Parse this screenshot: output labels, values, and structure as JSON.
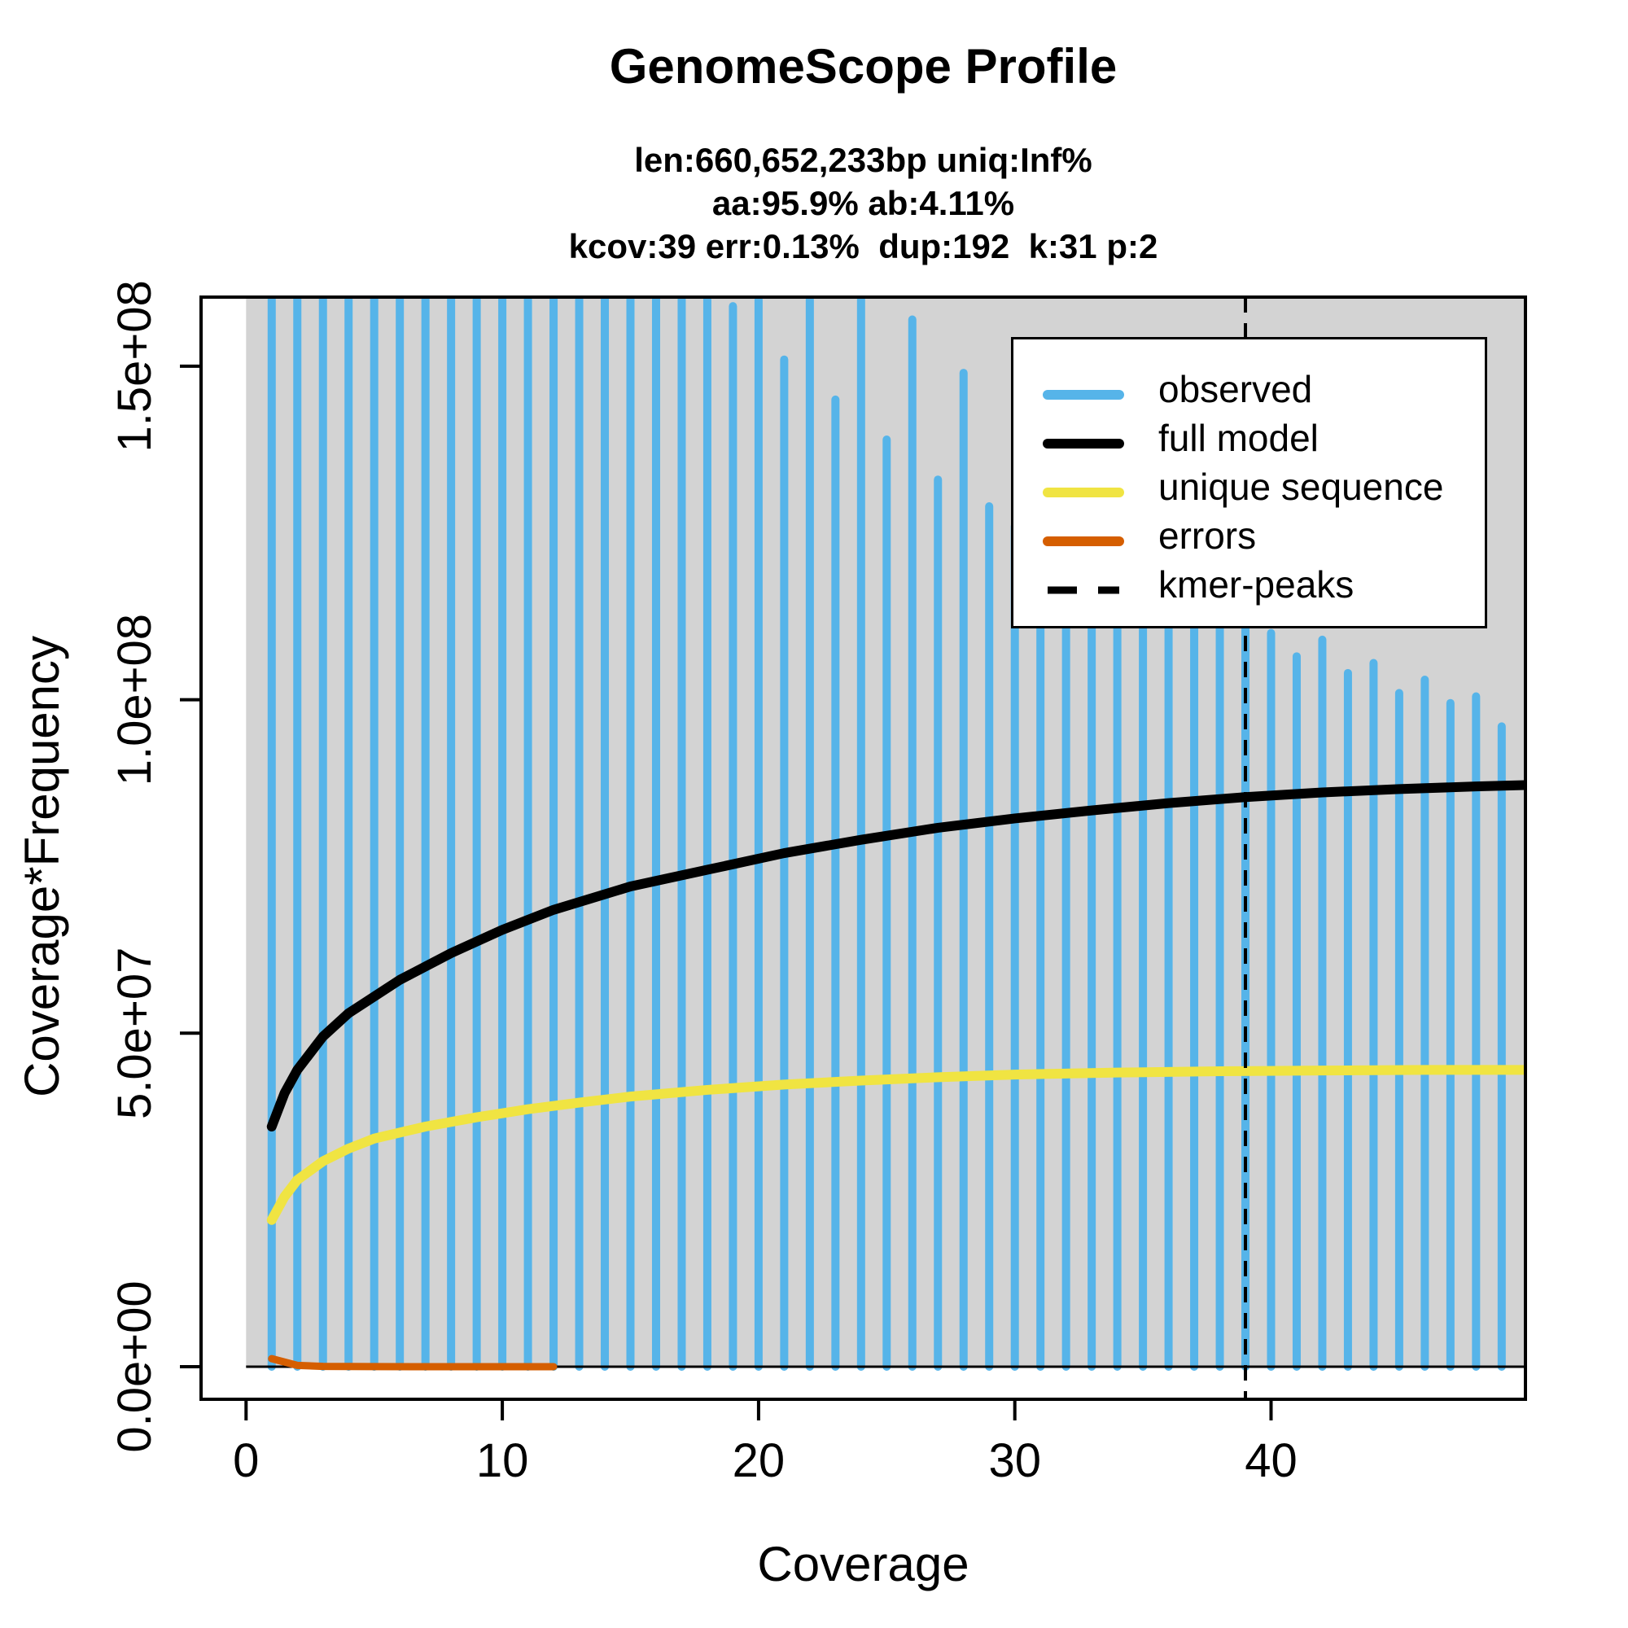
{
  "header": {
    "title": "GenomeScope Profile",
    "subtitle_lines": [
      "len:660,652,233bp uniq:Inf%",
      "aa:95.9% ab:4.11%",
      "kcov:39 err:0.13%  dup:192  k:31 p:2"
    ]
  },
  "axes": {
    "x_label": "Coverage",
    "y_label": "Coverage*Frequency",
    "x_ticks": [
      0,
      10,
      20,
      30,
      40
    ],
    "y_ticks": [
      {
        "value": 0,
        "label": "0.0e+00"
      },
      {
        "value": 50000000,
        "label": "5.0e+07"
      },
      {
        "value": 100000000,
        "label": "1.0e+08"
      },
      {
        "value": 150000000,
        "label": "1.5e+08"
      }
    ]
  },
  "legend": {
    "items": [
      {
        "label": "observed",
        "color": "#56B4E9",
        "style": "solid"
      },
      {
        "label": "full model",
        "color": "#000000",
        "style": "solid"
      },
      {
        "label": "unique sequence",
        "color": "#F0E442",
        "style": "solid"
      },
      {
        "label": "errors",
        "color": "#D55E00",
        "style": "solid"
      },
      {
        "label": "kmer-peaks",
        "color": "#000000",
        "style": "dashed"
      }
    ]
  },
  "colors": {
    "observed": "#56B4E9",
    "full_model": "#000000",
    "unique_sequence": "#F0E442",
    "errors": "#D55E00",
    "kmer_peaks": "#000000",
    "plot_background": "#D3D3D3",
    "page_background": "#FFFFFF"
  },
  "chart_data": {
    "type": "bar",
    "subtype": "coverage-histogram-with-model-curves",
    "title": "GenomeScope Profile",
    "xlabel": "Coverage",
    "ylabel": "Coverage*Frequency",
    "x_range": [
      -1.8,
      49.93
    ],
    "y_range": [
      -4900000,
      160400000
    ],
    "grid": false,
    "legend_position": "top-right",
    "kmer_peaks_x": [
      39
    ],
    "observed": {
      "note": "vertical blue lines at integer coverages; values above y_range max are clipped at plot top",
      "x": [
        1,
        2,
        3,
        4,
        5,
        6,
        7,
        8,
        9,
        10,
        11,
        12,
        13,
        14,
        15,
        16,
        17,
        18,
        19,
        20,
        21,
        22,
        23,
        24,
        25,
        26,
        27,
        28,
        29,
        30,
        31,
        32,
        33,
        34,
        35,
        36,
        37,
        38,
        39,
        40,
        41,
        42,
        43,
        44,
        45,
        46,
        47,
        48,
        49
      ],
      "y": [
        162000000,
        162000000,
        162000000,
        162000000,
        162000000,
        162000000,
        162000000,
        162000000,
        162000000,
        162000000,
        162000000,
        162000000,
        162000000,
        162000000,
        162000000,
        162000000,
        162000000,
        162000000,
        159000000,
        160000000,
        151000000,
        160000000,
        145000000,
        160000000,
        139000000,
        157000000,
        133000000,
        149000000,
        129000000,
        126000000,
        123500000,
        121000000,
        119000000,
        117500000,
        116000000,
        114500000,
        113500000,
        112500000,
        111000000,
        110000000,
        106500000,
        109000000,
        104000000,
        105500000,
        101000000,
        103000000,
        99500000,
        100500000,
        96000000
      ]
    },
    "series": [
      {
        "name": "full model",
        "color": "#000000",
        "points": [
          [
            1,
            36000000
          ],
          [
            1.5,
            41000000
          ],
          [
            2,
            44500000
          ],
          [
            3,
            49500000
          ],
          [
            4,
            53000000
          ],
          [
            5,
            55500000
          ],
          [
            6,
            58000000
          ],
          [
            8,
            62000000
          ],
          [
            10,
            65500000
          ],
          [
            12,
            68500000
          ],
          [
            15,
            72000000
          ],
          [
            18,
            74500000
          ],
          [
            21,
            77000000
          ],
          [
            24,
            79000000
          ],
          [
            27,
            80800000
          ],
          [
            30,
            82200000
          ],
          [
            33,
            83400000
          ],
          [
            36,
            84500000
          ],
          [
            39,
            85400000
          ],
          [
            42,
            86100000
          ],
          [
            45,
            86600000
          ],
          [
            48,
            87000000
          ],
          [
            49.9,
            87200000
          ]
        ]
      },
      {
        "name": "unique sequence",
        "color": "#F0E442",
        "points": [
          [
            1,
            22000000
          ],
          [
            1.5,
            25500000
          ],
          [
            2,
            28000000
          ],
          [
            3,
            30800000
          ],
          [
            4,
            32700000
          ],
          [
            5,
            34200000
          ],
          [
            7,
            36000000
          ],
          [
            9,
            37400000
          ],
          [
            11,
            38600000
          ],
          [
            13,
            39600000
          ],
          [
            15,
            40500000
          ],
          [
            18,
            41500000
          ],
          [
            21,
            42300000
          ],
          [
            24,
            42900000
          ],
          [
            27,
            43400000
          ],
          [
            30,
            43800000
          ],
          [
            34,
            44100000
          ],
          [
            38,
            44300000
          ],
          [
            42,
            44400000
          ],
          [
            46,
            44500000
          ],
          [
            49.9,
            44500000
          ]
        ]
      },
      {
        "name": "errors",
        "color": "#D55E00",
        "points": [
          [
            1,
            1200000
          ],
          [
            2,
            200000
          ],
          [
            3,
            50000
          ],
          [
            5,
            10000
          ],
          [
            8,
            3000
          ],
          [
            12,
            1000
          ]
        ]
      }
    ]
  }
}
